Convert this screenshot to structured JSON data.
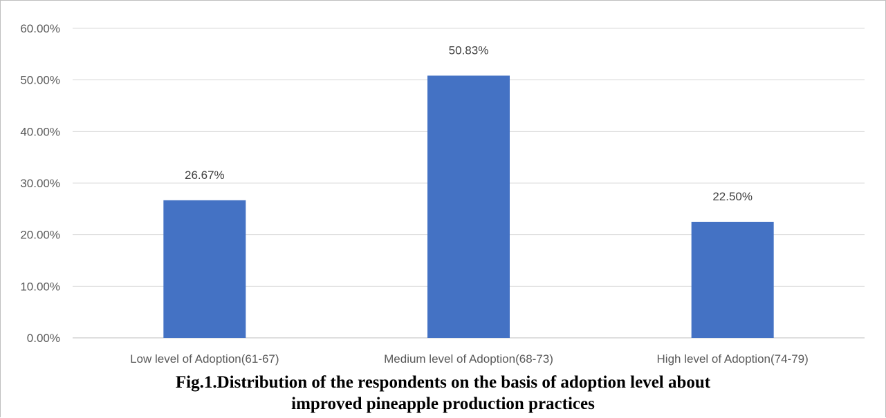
{
  "chart_data": {
    "type": "bar",
    "categories": [
      "Low level of Adoption(61-67)",
      "Medium level of Adoption(68-73)",
      "High level of Adoption(74-79)"
    ],
    "values": [
      26.67,
      50.83,
      22.5
    ],
    "value_labels": [
      "26.67%",
      "50.83%",
      "22.50%"
    ],
    "ylim": [
      0,
      60
    ],
    "yticks": [
      0,
      10,
      20,
      30,
      40,
      50,
      60
    ],
    "ytick_labels": [
      "0.00%",
      "10.00%",
      "20.00%",
      "30.00%",
      "40.00%",
      "50.00%",
      "60.00%"
    ],
    "bar_color": "#4472c4",
    "grid": true,
    "legend": "none"
  },
  "caption": {
    "line1": "Fig.1.Distribution of the respondents on the basis of adoption level about",
    "line2": "improved pineapple production practices"
  }
}
